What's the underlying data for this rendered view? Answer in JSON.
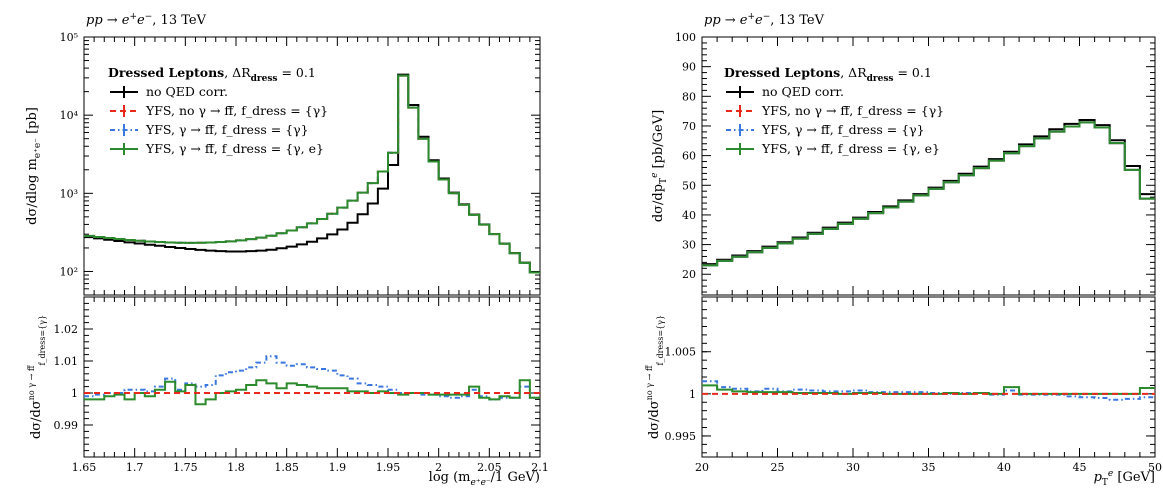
{
  "chart_data": [
    {
      "type": "line",
      "panel": "left-main",
      "title": "pp → e⁺e⁻, 13 TeV",
      "ylabel": "dσ/dlog m_{e⁺e⁻} [pb]",
      "yscale": "log",
      "ylim": [
        50,
        100000
      ],
      "xlim": [
        1.65,
        2.1
      ],
      "yticks": [
        "10²",
        "10³",
        "10⁴",
        "10⁵"
      ],
      "legend_title": "Dressed Leptons, ΔR_dress = 0.1",
      "legend_placement": "top-left",
      "x": [
        1.65,
        1.66,
        1.67,
        1.68,
        1.69,
        1.7,
        1.71,
        1.72,
        1.73,
        1.74,
        1.75,
        1.76,
        1.77,
        1.78,
        1.79,
        1.8,
        1.81,
        1.82,
        1.83,
        1.84,
        1.85,
        1.86,
        1.87,
        1.88,
        1.89,
        1.9,
        1.91,
        1.92,
        1.93,
        1.94,
        1.95,
        1.96,
        1.97,
        1.98,
        1.99,
        2.0,
        2.01,
        2.02,
        2.03,
        2.04,
        2.05,
        2.06,
        2.07,
        2.08,
        2.09,
        2.1
      ],
      "series": [
        {
          "name": "no QED corr.",
          "color": "#000000",
          "style": "solid",
          "values": [
            275,
            265,
            255,
            245,
            236,
            228,
            220,
            213,
            206,
            200,
            194,
            189,
            185,
            182,
            180,
            180,
            182,
            185,
            190,
            198,
            208,
            222,
            240,
            265,
            298,
            345,
            420,
            540,
            740,
            1150,
            2300,
            33000,
            13500,
            5300,
            2650,
            1550,
            1020,
            725,
            535,
            400,
            302,
            228,
            172,
            130,
            98,
            78
          ]
        },
        {
          "name": "YFS, no γ → ff̄, f_dress = {γ}",
          "color": "#e8291c",
          "style": "dashed",
          "values": [
            285,
            276,
            268,
            260,
            253,
            247,
            242,
            238,
            235,
            233,
            232,
            233,
            235,
            238,
            243,
            250,
            259,
            271,
            287,
            308,
            334,
            368,
            412,
            470,
            548,
            655,
            805,
            1020,
            1350,
            1900,
            3300,
            32000,
            12500,
            5000,
            2550,
            1500,
            1000,
            715,
            530,
            397,
            300,
            226,
            171,
            129,
            97,
            77
          ]
        },
        {
          "name": "YFS, γ → ff̄, f_dress = {γ}",
          "color": "#3a78e0",
          "style": "dashdot",
          "values": [
            285,
            276,
            268,
            260,
            253,
            247,
            242,
            238,
            235,
            233,
            232,
            233,
            235,
            238,
            243,
            250,
            259,
            271,
            287,
            308,
            334,
            368,
            412,
            470,
            548,
            655,
            805,
            1020,
            1350,
            1900,
            3300,
            32000,
            12500,
            5000,
            2550,
            1500,
            1000,
            715,
            530,
            397,
            300,
            226,
            171,
            129,
            97,
            77
          ]
        },
        {
          "name": "YFS, γ → ff̄, f_dress = {γ, e}",
          "color": "#2b8a2b",
          "style": "solid",
          "values": [
            285,
            276,
            268,
            260,
            253,
            247,
            242,
            238,
            235,
            233,
            232,
            233,
            235,
            238,
            243,
            250,
            259,
            271,
            287,
            308,
            334,
            368,
            412,
            470,
            548,
            655,
            805,
            1020,
            1350,
            1900,
            3300,
            32000,
            12500,
            5000,
            2550,
            1500,
            1000,
            715,
            530,
            397,
            300,
            226,
            171,
            129,
            97,
            77
          ]
        }
      ]
    },
    {
      "type": "line",
      "panel": "left-ratio",
      "ylabel": "dσ/dσ^{no γ → ff̄}_{f_dress = {γ}}",
      "xlabel": "log (m_{e⁺e⁻}/1 GeV)",
      "xlim": [
        1.65,
        2.1
      ],
      "ylim": [
        0.98,
        1.03
      ],
      "xticks": [
        "1.65",
        "1.7",
        "1.75",
        "1.8",
        "1.85",
        "1.9",
        "1.95",
        "2",
        "2.05",
        "2.1"
      ],
      "yticks": [
        "0.99",
        "1",
        "1.01",
        "1.02"
      ],
      "x": [
        1.65,
        1.66,
        1.67,
        1.68,
        1.69,
        1.7,
        1.71,
        1.72,
        1.73,
        1.74,
        1.75,
        1.76,
        1.77,
        1.78,
        1.79,
        1.8,
        1.81,
        1.82,
        1.83,
        1.84,
        1.85,
        1.86,
        1.87,
        1.88,
        1.89,
        1.9,
        1.91,
        1.92,
        1.93,
        1.94,
        1.95,
        1.96,
        1.97,
        1.98,
        1.99,
        2.0,
        2.01,
        2.02,
        2.03,
        2.04,
        2.05,
        2.06,
        2.07,
        2.08,
        2.09,
        2.1
      ],
      "series": [
        {
          "name": "YFS, no γ → ff̄, f_dress = {γ}",
          "color": "#e8291c",
          "values": [
            1,
            1,
            1,
            1,
            1,
            1,
            1,
            1,
            1,
            1,
            1,
            1,
            1,
            1,
            1,
            1,
            1,
            1,
            1,
            1,
            1,
            1,
            1,
            1,
            1,
            1,
            1,
            1,
            1,
            1,
            1,
            1,
            1,
            1,
            1,
            1,
            1,
            1,
            1,
            1,
            1,
            1,
            1,
            1,
            1,
            1
          ]
        },
        {
          "name": "YFS, γ → ff̄, f_dress = {γ}",
          "color": "#3a78e0",
          "values": [
            0.999,
            0.9995,
            1.0,
            1.0,
            1.001,
            1.001,
            1.0005,
            1.002,
            1.0045,
            1.001,
            1.003,
            1.002,
            1.0025,
            1.0055,
            1.0065,
            1.007,
            1.008,
            1.0095,
            1.0115,
            1.0095,
            1.0085,
            1.009,
            1.008,
            1.0075,
            1.007,
            1.0055,
            1.0045,
            1.003,
            1.0025,
            1.002,
            1.001,
            1.0,
            1.0,
            0.9995,
            0.9995,
            0.999,
            0.9985,
            0.999,
            1.001,
            0.999,
            0.998,
            0.9985,
            0.9985,
            1.002,
            0.9985,
            0.9975
          ]
        },
        {
          "name": "YFS, γ → ff̄, f_dress = {γ, e}",
          "color": "#2b8a2b",
          "values": [
            0.998,
            0.998,
            0.999,
            0.9995,
            0.998,
            1.0,
            0.999,
            1.001,
            1.0035,
            1.0005,
            1.0025,
            0.9965,
            0.998,
            1.0,
            1.0005,
            1.001,
            1.0025,
            1.004,
            1.003,
            1.0015,
            1.003,
            1.0025,
            1.002,
            1.0015,
            1.0015,
            1.0015,
            1.0005,
            1.0005,
            1.0,
            1.0005,
            1.0,
            0.9995,
            1.0,
            1.0,
            0.9995,
            0.9995,
            0.9995,
            0.9995,
            1.002,
            0.9985,
            0.998,
            0.999,
            0.9985,
            1.004,
            0.9985,
            0.9985
          ]
        }
      ]
    },
    {
      "type": "line",
      "panel": "right-main",
      "title": "pp → e⁺e⁻, 13 TeV",
      "ylabel": "dσ/dp_T^e [pb/GeV]",
      "ylim": [
        13,
        100
      ],
      "xlim": [
        20,
        50
      ],
      "yticks": [
        "20",
        "30",
        "40",
        "50",
        "60",
        "70",
        "80",
        "90",
        "100"
      ],
      "legend_title": "Dressed Leptons, ΔR_dress = 0.1",
      "legend_placement": "top-left",
      "x": [
        20,
        21,
        22,
        23,
        24,
        25,
        26,
        27,
        28,
        29,
        30,
        31,
        32,
        33,
        34,
        35,
        36,
        37,
        38,
        39,
        40,
        41,
        42,
        43,
        44,
        45,
        46,
        47,
        48,
        49,
        50
      ],
      "series": [
        {
          "name": "no QED corr.",
          "color": "#000000",
          "values": [
            23.4,
            24.9,
            26.3,
            27.8,
            29.3,
            30.8,
            32.4,
            34.0,
            35.7,
            37.4,
            39.1,
            41.0,
            42.9,
            44.9,
            47.0,
            49.2,
            51.5,
            53.9,
            56.3,
            58.8,
            61.3,
            63.8,
            66.5,
            68.9,
            70.7,
            72.0,
            70.3,
            65.2,
            56.5,
            47.0,
            37.5
          ]
        },
        {
          "name": "YFS, no γ → ff̄, f_dress = {γ}",
          "color": "#e8291c",
          "values": [
            23.0,
            24.5,
            25.9,
            27.4,
            28.9,
            30.4,
            32.0,
            33.6,
            35.3,
            37.0,
            38.7,
            40.6,
            42.5,
            44.5,
            46.6,
            48.8,
            51.0,
            53.4,
            55.8,
            58.3,
            60.8,
            63.2,
            65.8,
            68.1,
            69.8,
            71.2,
            69.5,
            64.2,
            55.2,
            45.5,
            36.0
          ]
        },
        {
          "name": "YFS, γ → ff̄, f_dress = {γ}",
          "color": "#3a78e0",
          "values": [
            23.0,
            24.5,
            25.9,
            27.4,
            28.9,
            30.4,
            32.0,
            33.6,
            35.3,
            37.0,
            38.7,
            40.6,
            42.5,
            44.5,
            46.6,
            48.8,
            51.0,
            53.4,
            55.8,
            58.3,
            60.8,
            63.2,
            65.8,
            68.1,
            69.8,
            71.2,
            69.5,
            64.2,
            55.2,
            45.5,
            36.0
          ]
        },
        {
          "name": "YFS, γ → ff̄, f_dress = {γ, e}",
          "color": "#2b8a2b",
          "values": [
            23.0,
            24.5,
            25.9,
            27.4,
            28.9,
            30.4,
            32.0,
            33.6,
            35.3,
            37.0,
            38.7,
            40.6,
            42.5,
            44.5,
            46.6,
            48.8,
            51.0,
            53.4,
            55.8,
            58.3,
            60.8,
            63.2,
            65.8,
            68.1,
            69.8,
            71.2,
            69.5,
            64.2,
            55.2,
            45.5,
            36.0
          ]
        }
      ]
    },
    {
      "type": "line",
      "panel": "right-ratio",
      "ylabel": "dσ/dσ^{no γ → ff̄}_{f_dress = {γ}}",
      "xlabel": "p_T^e [GeV]",
      "xlim": [
        20,
        50
      ],
      "ylim": [
        0.9925,
        1.0115
      ],
      "xticks": [
        "20",
        "25",
        "30",
        "35",
        "40",
        "45",
        "50"
      ],
      "yticks": [
        "0.995",
        "1",
        "1.005"
      ],
      "x": [
        20,
        21,
        22,
        23,
        24,
        25,
        26,
        27,
        28,
        29,
        30,
        31,
        32,
        33,
        34,
        35,
        36,
        37,
        38,
        39,
        40,
        41,
        42,
        43,
        44,
        45,
        46,
        47,
        48,
        49,
        50
      ],
      "series": [
        {
          "name": "YFS, no γ → ff̄, f_dress = {γ}",
          "color": "#e8291c",
          "values": [
            1,
            1,
            1,
            1,
            1,
            1,
            1,
            1,
            1,
            1,
            1,
            1,
            1,
            1,
            1,
            1,
            1,
            1,
            1,
            1,
            1,
            1,
            1,
            1,
            1,
            1,
            1,
            1,
            1,
            1,
            1
          ]
        },
        {
          "name": "YFS, γ → ff̄, f_dress = {γ}",
          "color": "#3a78e0",
          "values": [
            1.0015,
            1.0008,
            1.0006,
            1.0003,
            1.0006,
            1.0003,
            1.0005,
            1.0004,
            1.0003,
            1.0003,
            1.0004,
            1.0002,
            1.0002,
            1.0002,
            1.0002,
            1.0001,
            1.0,
            1.0001,
            1.0001,
            0.9999,
            1.0004,
            0.9999,
            0.9999,
            0.9999,
            0.9997,
            0.9996,
            0.9995,
            0.9993,
            0.9994,
            0.9996,
            0.9995
          ]
        },
        {
          "name": "YFS, γ → ff̄, f_dress = {γ, e}",
          "color": "#2b8a2b",
          "values": [
            1.001,
            1.0005,
            1.0003,
            1.0002,
            1.0002,
            1.0002,
            1.0001,
            1.0001,
            1.0001,
            1.0,
            1.0001,
            1.0001,
            1.0,
            1.0,
            1.0,
            1.0,
            1.0001,
            1.0,
            1.0001,
            1.0,
            1.0008,
            1.0,
            1.0,
            1.0,
            1.0,
            1.0,
            1.0,
            1.0,
            1.0,
            1.0007,
            1.0003
          ]
        }
      ]
    }
  ],
  "legend": {
    "items": [
      {
        "label": "no QED corr.",
        "color": "#000000",
        "style": "solid"
      },
      {
        "label": "YFS, no γ → ff̄, f_dress = {γ}",
        "color": "#e8291c",
        "style": "dashed"
      },
      {
        "label": "YFS, γ → ff̄, f_dress = {γ}",
        "color": "#3a78e0",
        "style": "dashdot"
      },
      {
        "label": "YFS, γ → ff̄, f_dress = {γ, e}",
        "color": "#2b8a2b",
        "style": "solid"
      }
    ]
  }
}
